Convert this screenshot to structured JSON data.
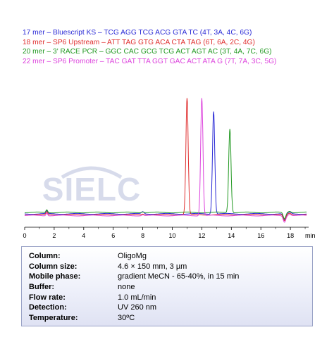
{
  "legend": [
    {
      "text": "17 mer – Bluescript KS – TCG AGG TCG ACG GTA TC (4T, 3A, 4C, 6G)",
      "color": "#2b2bd6"
    },
    {
      "text": "18 mer – SP6 Upstream – ATT TAG GTG ACA CTA TAG (6T, 6A, 2C, 4G)",
      "color": "#e03030"
    },
    {
      "text": "20 mer – 3' RACE PCR – GGC CAC GCG TCG ACT AGT AC (3T, 4A, 7C, 6G)",
      "color": "#229922"
    },
    {
      "text": "22 mer – SP6 Promoter – TAC GAT TTA GGT GAC ACT ATA G (7T, 7A, 3C, 5G)",
      "color": "#dd44dd"
    }
  ],
  "watermark": "SIELC",
  "chart_data": {
    "type": "line",
    "xlabel": "min",
    "xlim": [
      0,
      19
    ],
    "x_ticks": [
      "0",
      "2",
      "4",
      "6",
      "8",
      "10",
      "12",
      "14",
      "16",
      "18"
    ],
    "grid": false,
    "series": [
      {
        "name": "17 mer – Bluescript KS",
        "color": "#2b2bd6",
        "peak_rt": 12.8,
        "peak_height": 0.82
      },
      {
        "name": "18 mer – SP6 Upstream",
        "color": "#e03030",
        "peak_rt": 11.0,
        "peak_height": 0.93
      },
      {
        "name": "20 mer – 3' RACE PCR",
        "color": "#229922",
        "peak_rt": 13.9,
        "peak_height": 0.67
      },
      {
        "name": "22 mer – SP6 Promoter",
        "color": "#dd44dd",
        "peak_rt": 12.0,
        "peak_height": 0.94
      }
    ]
  },
  "conditions": [
    {
      "label": "Column:",
      "value": "OligoMg"
    },
    {
      "label": "Column size:",
      "value": "4.6 × 150 mm, 3 µm"
    },
    {
      "label": "Mobile phase:",
      "value": "gradient  MeCN - 65-40%, in 15 min"
    },
    {
      "label": "Buffer:",
      "value": "none"
    },
    {
      "label": "Flow rate:",
      "value": "1.0 mL/min"
    },
    {
      "label": "Detection:",
      "value": "UV 260 nm"
    },
    {
      "label": "Temperature:",
      "value": "30ºC"
    }
  ]
}
